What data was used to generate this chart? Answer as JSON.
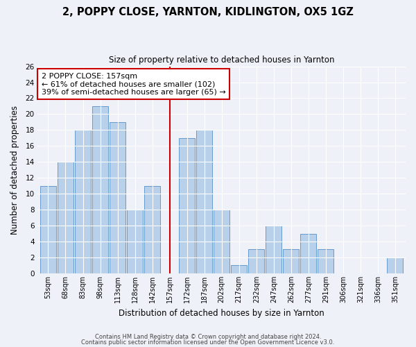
{
  "title": "2, POPPY CLOSE, YARNTON, KIDLINGTON, OX5 1GZ",
  "subtitle": "Size of property relative to detached houses in Yarnton",
  "xlabel": "Distribution of detached houses by size in Yarnton",
  "ylabel": "Number of detached properties",
  "categories": [
    "53sqm",
    "68sqm",
    "83sqm",
    "98sqm",
    "113sqm",
    "128sqm",
    "142sqm",
    "157sqm",
    "172sqm",
    "187sqm",
    "202sqm",
    "217sqm",
    "232sqm",
    "247sqm",
    "262sqm",
    "277sqm",
    "291sqm",
    "306sqm",
    "321sqm",
    "336sqm",
    "351sqm"
  ],
  "values": [
    11,
    14,
    18,
    21,
    19,
    8,
    11,
    0,
    17,
    18,
    8,
    1,
    3,
    6,
    3,
    5,
    3,
    0,
    0,
    0,
    2
  ],
  "bar_color": "#b8d0ea",
  "bar_edge_color": "#6699cc",
  "highlight_index": 7,
  "highlight_line_color": "#cc0000",
  "ylim": [
    0,
    26
  ],
  "yticks": [
    0,
    2,
    4,
    6,
    8,
    10,
    12,
    14,
    16,
    18,
    20,
    22,
    24,
    26
  ],
  "annotation_text": "2 POPPY CLOSE: 157sqm\n← 61% of detached houses are smaller (102)\n39% of semi-detached houses are larger (65) →",
  "annotation_box_color": "#ffffff",
  "annotation_box_edge": "#cc0000",
  "footer_line1": "Contains HM Land Registry data © Crown copyright and database right 2024.",
  "footer_line2": "Contains public sector information licensed under the Open Government Licence v3.0.",
  "background_color": "#eef2f8",
  "grid_color": "#ffffff"
}
